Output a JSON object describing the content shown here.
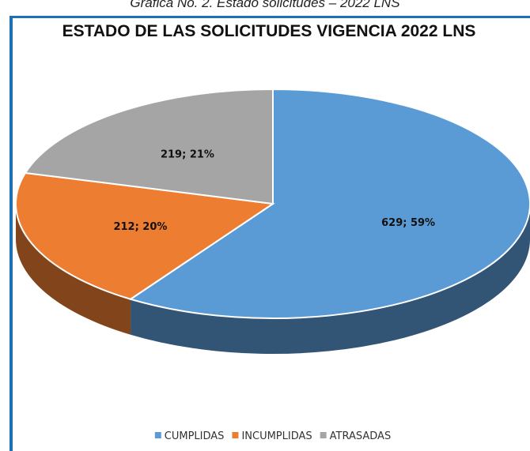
{
  "chart_data": {
    "type": "pie",
    "caption": "Gráfica No. 2. Estado solicitudes – 2022 LNS",
    "title": "ESTADO DE LAS SOLICITUDES VIGENCIA 2022 LNS",
    "categories": [
      "CUMPLIDAS",
      "INCUMPLIDAS",
      "ATRASADAS"
    ],
    "values": [
      629,
      212,
      219
    ],
    "value_labels": [
      "629; 59%",
      "212; 20%",
      "219; 21%"
    ],
    "colors": [
      "#5b9bd5",
      "#ed7d31",
      "#a5a5a5"
    ],
    "legend": "bottom"
  }
}
